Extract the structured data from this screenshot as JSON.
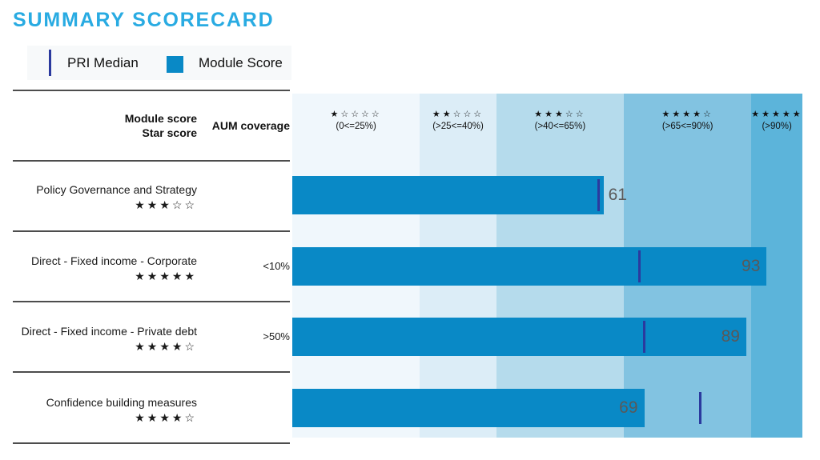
{
  "page": {
    "title": "SUMMARY SCORECARD"
  },
  "legend": {
    "pri_median_label": "PRI Median",
    "module_score_label": "Module Score"
  },
  "table": {
    "col1_header_line1": "Module score",
    "col1_header_line2": "Star score",
    "col2_header": "AUM coverage"
  },
  "chart_data": {
    "type": "bar",
    "title": "SUMMARY SCORECARD",
    "xlim": [
      0,
      100
    ],
    "legend": [
      "PRI Median",
      "Module Score"
    ],
    "bands": [
      {
        "stars_filled": 1,
        "stars_total": 5,
        "label": "(0<=25%)",
        "from": 0,
        "to": 25
      },
      {
        "stars_filled": 2,
        "stars_total": 5,
        "label": "(>25<=40%)",
        "from": 25,
        "to": 40
      },
      {
        "stars_filled": 3,
        "stars_total": 5,
        "label": "(>40<=65%)",
        "from": 40,
        "to": 65
      },
      {
        "stars_filled": 4,
        "stars_total": 5,
        "label": "(>65<=90%)",
        "from": 65,
        "to": 90
      },
      {
        "stars_filled": 5,
        "stars_total": 5,
        "label": "(>90%)",
        "from": 90,
        "to": 100
      }
    ],
    "rows": [
      {
        "module": "Policy Governance and Strategy",
        "star_score": 3,
        "aum_coverage": "",
        "module_score": 61,
        "pri_median": 60,
        "score_label_placement": "outside"
      },
      {
        "module": "Direct - Fixed income - Corporate",
        "star_score": 5,
        "aum_coverage": "<10%",
        "module_score": 93,
        "pri_median": 68,
        "score_label_placement": "inside"
      },
      {
        "module": "Direct - Fixed income - Private debt",
        "star_score": 4,
        "aum_coverage": ">50%",
        "module_score": 89,
        "pri_median": 69,
        "score_label_placement": "inside"
      },
      {
        "module": "Confidence building measures",
        "star_score": 4,
        "aum_coverage": "",
        "module_score": 69,
        "pri_median": 80,
        "score_label_placement": "inside"
      }
    ],
    "colors": {
      "title": "#29abe2",
      "bar": "#0989c6",
      "median_line": "#2b3a9e",
      "band_fills": [
        "#f0f7fc",
        "#dcedf7",
        "#b5dbec",
        "#82c3e1",
        "#5cb4da"
      ],
      "value_label": "#595959"
    }
  }
}
